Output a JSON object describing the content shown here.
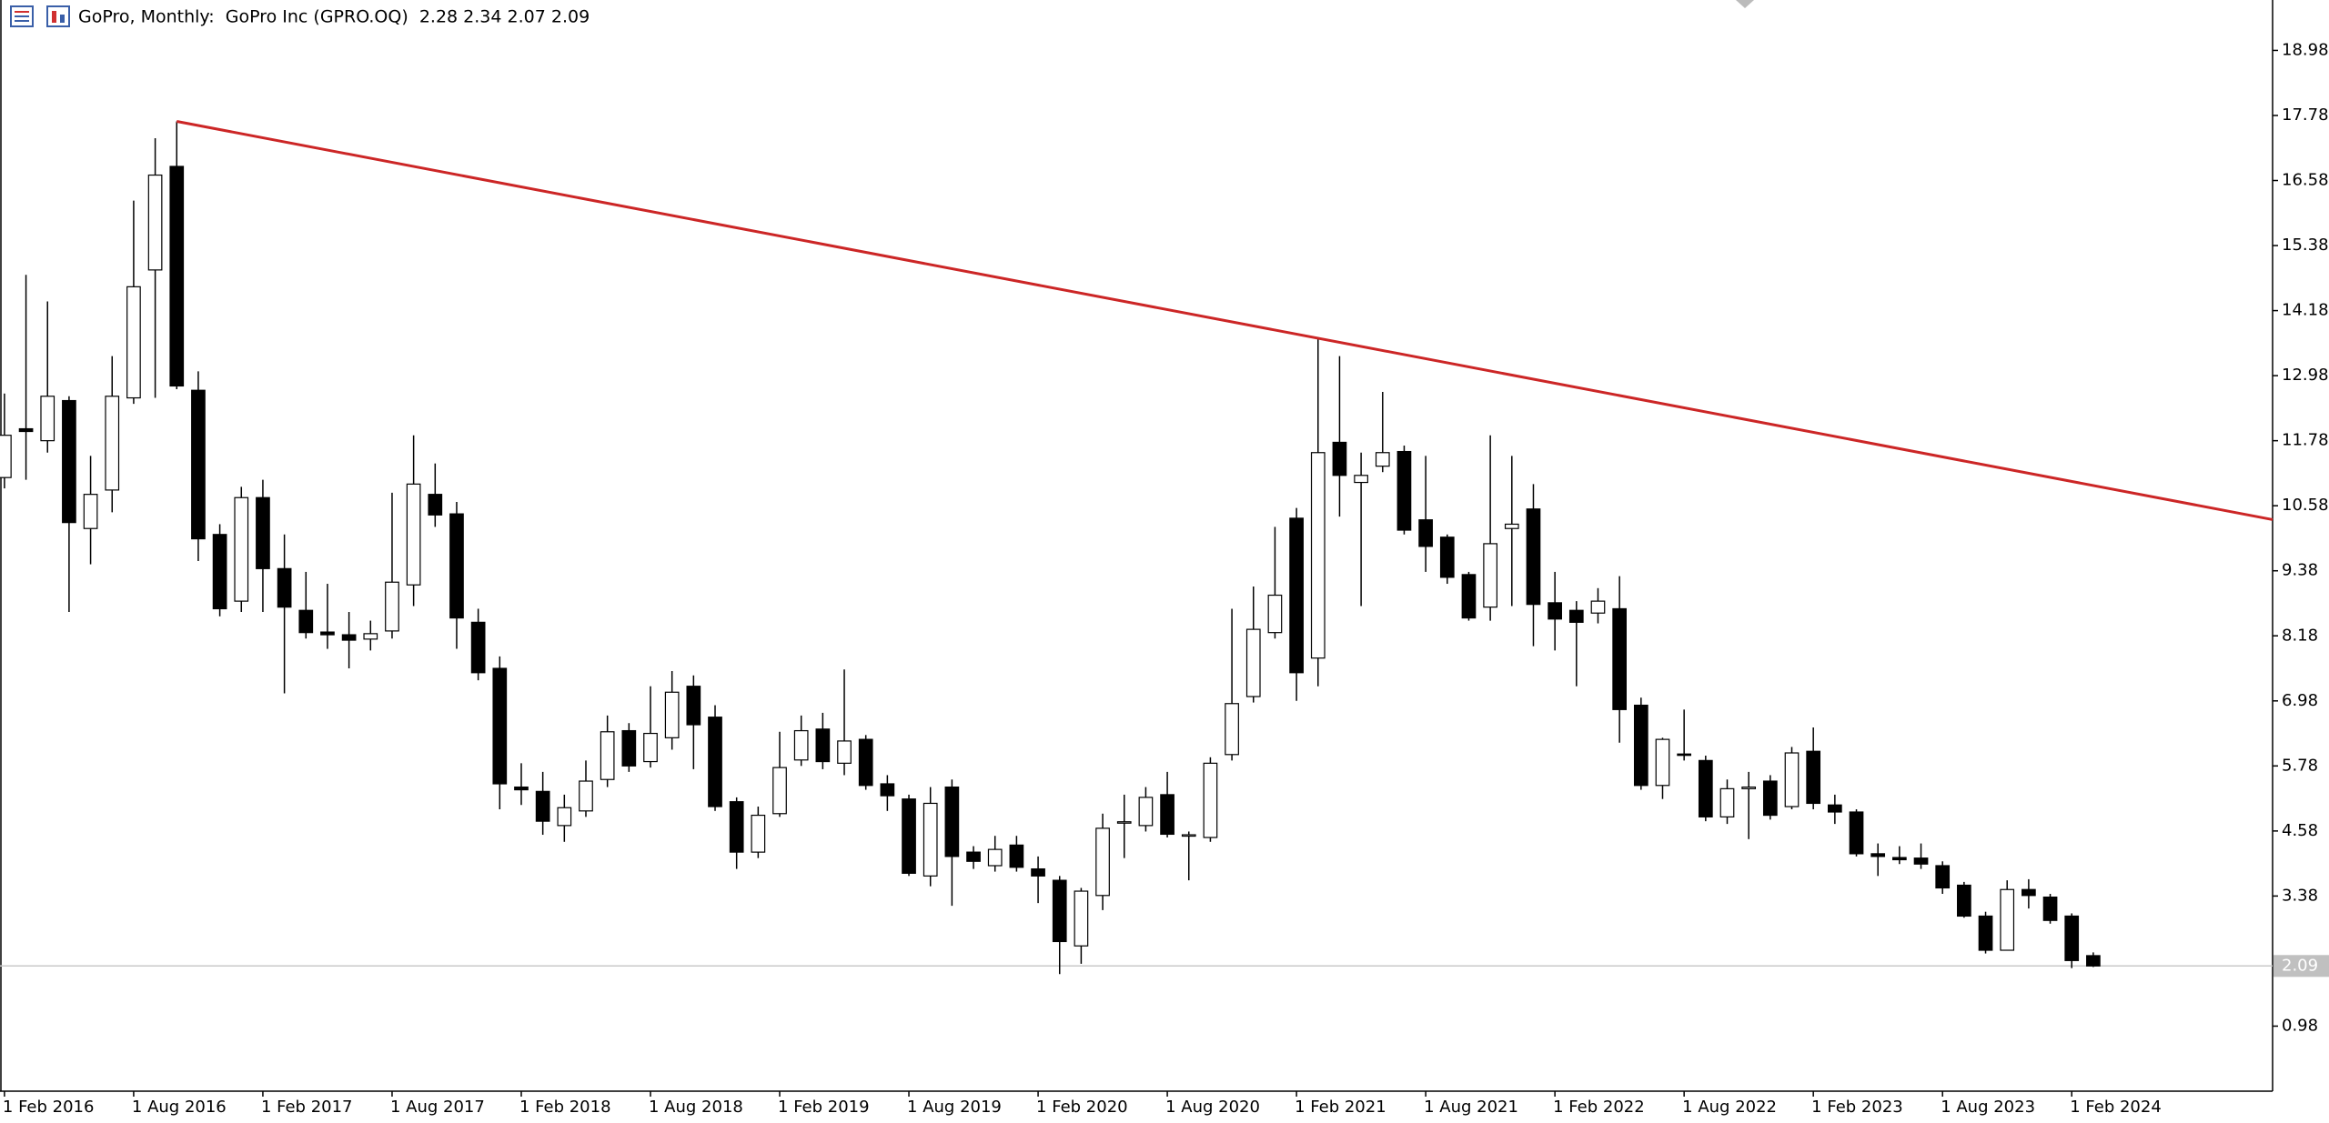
{
  "chart_data": {
    "type": "candlestick",
    "title": "GoPro, Monthly:  GoPro Inc (GPRO.OQ)  2.28 2.34 2.07 2.09",
    "categories": [
      "1 Feb 2016",
      null,
      null,
      null,
      null,
      null,
      "1 Aug 2016",
      null,
      null,
      null,
      null,
      null,
      "1 Feb 2017",
      null,
      null,
      null,
      null,
      null,
      "1 Aug 2017",
      null,
      null,
      null,
      null,
      null,
      "1 Feb 2018",
      null,
      null,
      null,
      null,
      null,
      "1 Aug 2018",
      null,
      null,
      null,
      null,
      null,
      "1 Feb 2019",
      null,
      null,
      null,
      null,
      null,
      "1 Aug 2019",
      null,
      null,
      null,
      null,
      null,
      "1 Feb 2020",
      null,
      null,
      null,
      null,
      null,
      "1 Aug 2020",
      null,
      null,
      null,
      null,
      null,
      "1 Feb 2021",
      null,
      null,
      null,
      null,
      null,
      "1 Aug 2021",
      null,
      null,
      null,
      null,
      null,
      "1 Feb 2022",
      null,
      null,
      null,
      null,
      null,
      "1 Aug 2022",
      null,
      null,
      null,
      null,
      null,
      "1 Feb 2023",
      null,
      null,
      null,
      null,
      null,
      "1 Aug 2023",
      null,
      null,
      null,
      null,
      null,
      "1 Feb 2024",
      null
    ],
    "open": [
      11.1,
      12.0,
      11.78,
      12.52,
      10.16,
      10.87,
      12.57,
      14.93,
      16.84,
      12.71,
      10.05,
      8.82,
      10.73,
      9.42,
      8.65,
      8.25,
      8.2,
      8.12,
      8.27,
      9.12,
      10.79,
      10.43,
      8.43,
      7.58,
      5.39,
      5.31,
      4.68,
      4.95,
      5.53,
      6.43,
      5.86,
      6.3,
      7.25,
      6.68,
      5.12,
      4.19,
      4.9,
      5.89,
      6.46,
      5.83,
      6.27,
      5.45,
      5.17,
      3.75,
      5.39,
      4.19,
      3.94,
      4.32,
      3.88,
      3.67,
      2.46,
      3.39,
      4.73,
      4.68,
      5.25,
      4.49,
      4.46,
      5.99,
      7.06,
      8.24,
      10.35,
      7.77,
      11.75,
      11.01,
      11.31,
      11.58,
      10.32,
      10.0,
      9.31,
      8.71,
      10.16,
      10.52,
      8.79,
      8.65,
      8.6,
      8.68,
      6.9,
      5.42,
      6.0,
      5.88,
      4.84,
      5.36,
      5.5,
      5.03,
      6.05,
      5.06,
      4.93,
      4.16,
      4.09,
      4.08,
      3.94,
      3.58,
      3.01,
      2.38,
      3.5,
      3.36,
      3.01,
      2.28
    ],
    "high": [
      12.65,
      14.84,
      14.35,
      12.6,
      11.5,
      13.34,
      16.21,
      17.36,
      17.67,
      13.06,
      10.24,
      10.93,
      11.06,
      10.05,
      9.36,
      9.14,
      8.62,
      8.46,
      10.82,
      11.88,
      11.36,
      10.65,
      8.68,
      7.8,
      5.83,
      5.67,
      5.25,
      5.88,
      6.71,
      6.57,
      7.25,
      7.53,
      7.45,
      6.9,
      5.2,
      5.03,
      6.41,
      6.71,
      6.76,
      7.56,
      6.35,
      5.61,
      5.25,
      5.39,
      5.53,
      4.3,
      4.49,
      4.49,
      4.11,
      3.75,
      3.53,
      4.9,
      5.25,
      5.39,
      5.67,
      4.57,
      5.94,
      8.68,
      9.09,
      10.19,
      10.54,
      13.67,
      13.34,
      11.56,
      12.68,
      11.69,
      11.5,
      10.05,
      9.36,
      11.88,
      11.5,
      10.98,
      9.36,
      8.82,
      9.06,
      9.28,
      7.04,
      6.3,
      6.82,
      5.97,
      5.53,
      5.67,
      5.61,
      6.13,
      6.49,
      5.25,
      4.98,
      4.35,
      4.3,
      4.35,
      4.02,
      3.64,
      3.09,
      3.67,
      3.69,
      3.42,
      3.06,
      2.34
    ],
    "low": [
      10.9,
      11.06,
      11.56,
      8.62,
      9.5,
      10.46,
      12.46,
      12.57,
      12.73,
      9.56,
      8.54,
      8.62,
      8.62,
      7.12,
      8.13,
      7.94,
      7.58,
      7.91,
      8.13,
      8.73,
      10.19,
      7.94,
      7.36,
      4.98,
      5.06,
      4.51,
      4.38,
      4.84,
      5.39,
      5.67,
      5.75,
      6.08,
      5.72,
      4.95,
      3.88,
      4.08,
      4.84,
      5.78,
      5.72,
      5.61,
      5.34,
      4.95,
      3.75,
      3.56,
      3.2,
      3.88,
      3.83,
      3.83,
      3.25,
      1.94,
      2.13,
      3.12,
      4.08,
      4.57,
      4.46,
      3.67,
      4.38,
      5.88,
      6.95,
      8.13,
      6.98,
      7.25,
      10.38,
      8.73,
      11.2,
      10.05,
      9.36,
      9.14,
      8.46,
      8.46,
      8.73,
      7.99,
      7.91,
      7.25,
      8.41,
      6.21,
      5.34,
      5.17,
      5.88,
      4.76,
      4.71,
      4.43,
      4.79,
      4.98,
      4.98,
      4.71,
      4.11,
      3.75,
      3.97,
      3.88,
      3.42,
      2.98,
      2.32,
      2.38,
      3.15,
      2.87,
      2.05,
      2.07
    ],
    "close": [
      11.88,
      11.95,
      12.6,
      10.27,
      10.79,
      12.6,
      14.62,
      16.68,
      12.79,
      9.97,
      8.68,
      10.73,
      9.42,
      8.71,
      8.24,
      8.2,
      8.1,
      8.22,
      9.17,
      10.98,
      10.41,
      8.51,
      7.5,
      5.45,
      5.34,
      4.76,
      5.01,
      5.5,
      6.41,
      5.78,
      6.38,
      7.14,
      6.54,
      5.03,
      4.19,
      4.87,
      5.75,
      6.43,
      5.86,
      6.24,
      5.42,
      5.23,
      3.8,
      5.09,
      4.11,
      4.02,
      4.24,
      3.91,
      3.75,
      2.54,
      3.47,
      4.63,
      4.75,
      5.2,
      4.52,
      4.51,
      5.83,
      6.93,
      8.3,
      8.93,
      7.5,
      11.56,
      11.14,
      11.14,
      11.56,
      10.13,
      9.83,
      9.26,
      8.51,
      9.88,
      10.24,
      8.76,
      8.49,
      8.43,
      8.82,
      6.82,
      5.42,
      6.27,
      5.99,
      4.84,
      5.36,
      5.39,
      4.87,
      6.02,
      5.09,
      4.93,
      4.16,
      4.11,
      4.05,
      3.97,
      3.53,
      3.01,
      2.38,
      3.5,
      3.39,
      2.93,
      2.19,
      2.09
    ],
    "up_color": "#ffffff",
    "down_color": "#000000",
    "wick_color": "#000000",
    "ylim": [
      -0.22,
      19.91
    ],
    "yticks": [
      0.98,
      3.38,
      4.58,
      5.78,
      6.98,
      8.18,
      9.38,
      10.58,
      11.78,
      12.98,
      14.18,
      15.38,
      16.58,
      17.78,
      18.98
    ],
    "grid": false,
    "trendline": {
      "color": "#cc2626",
      "points": [
        [
          8,
          17.67
        ],
        [
          61,
          13.67
        ]
      ]
    }
  }
}
